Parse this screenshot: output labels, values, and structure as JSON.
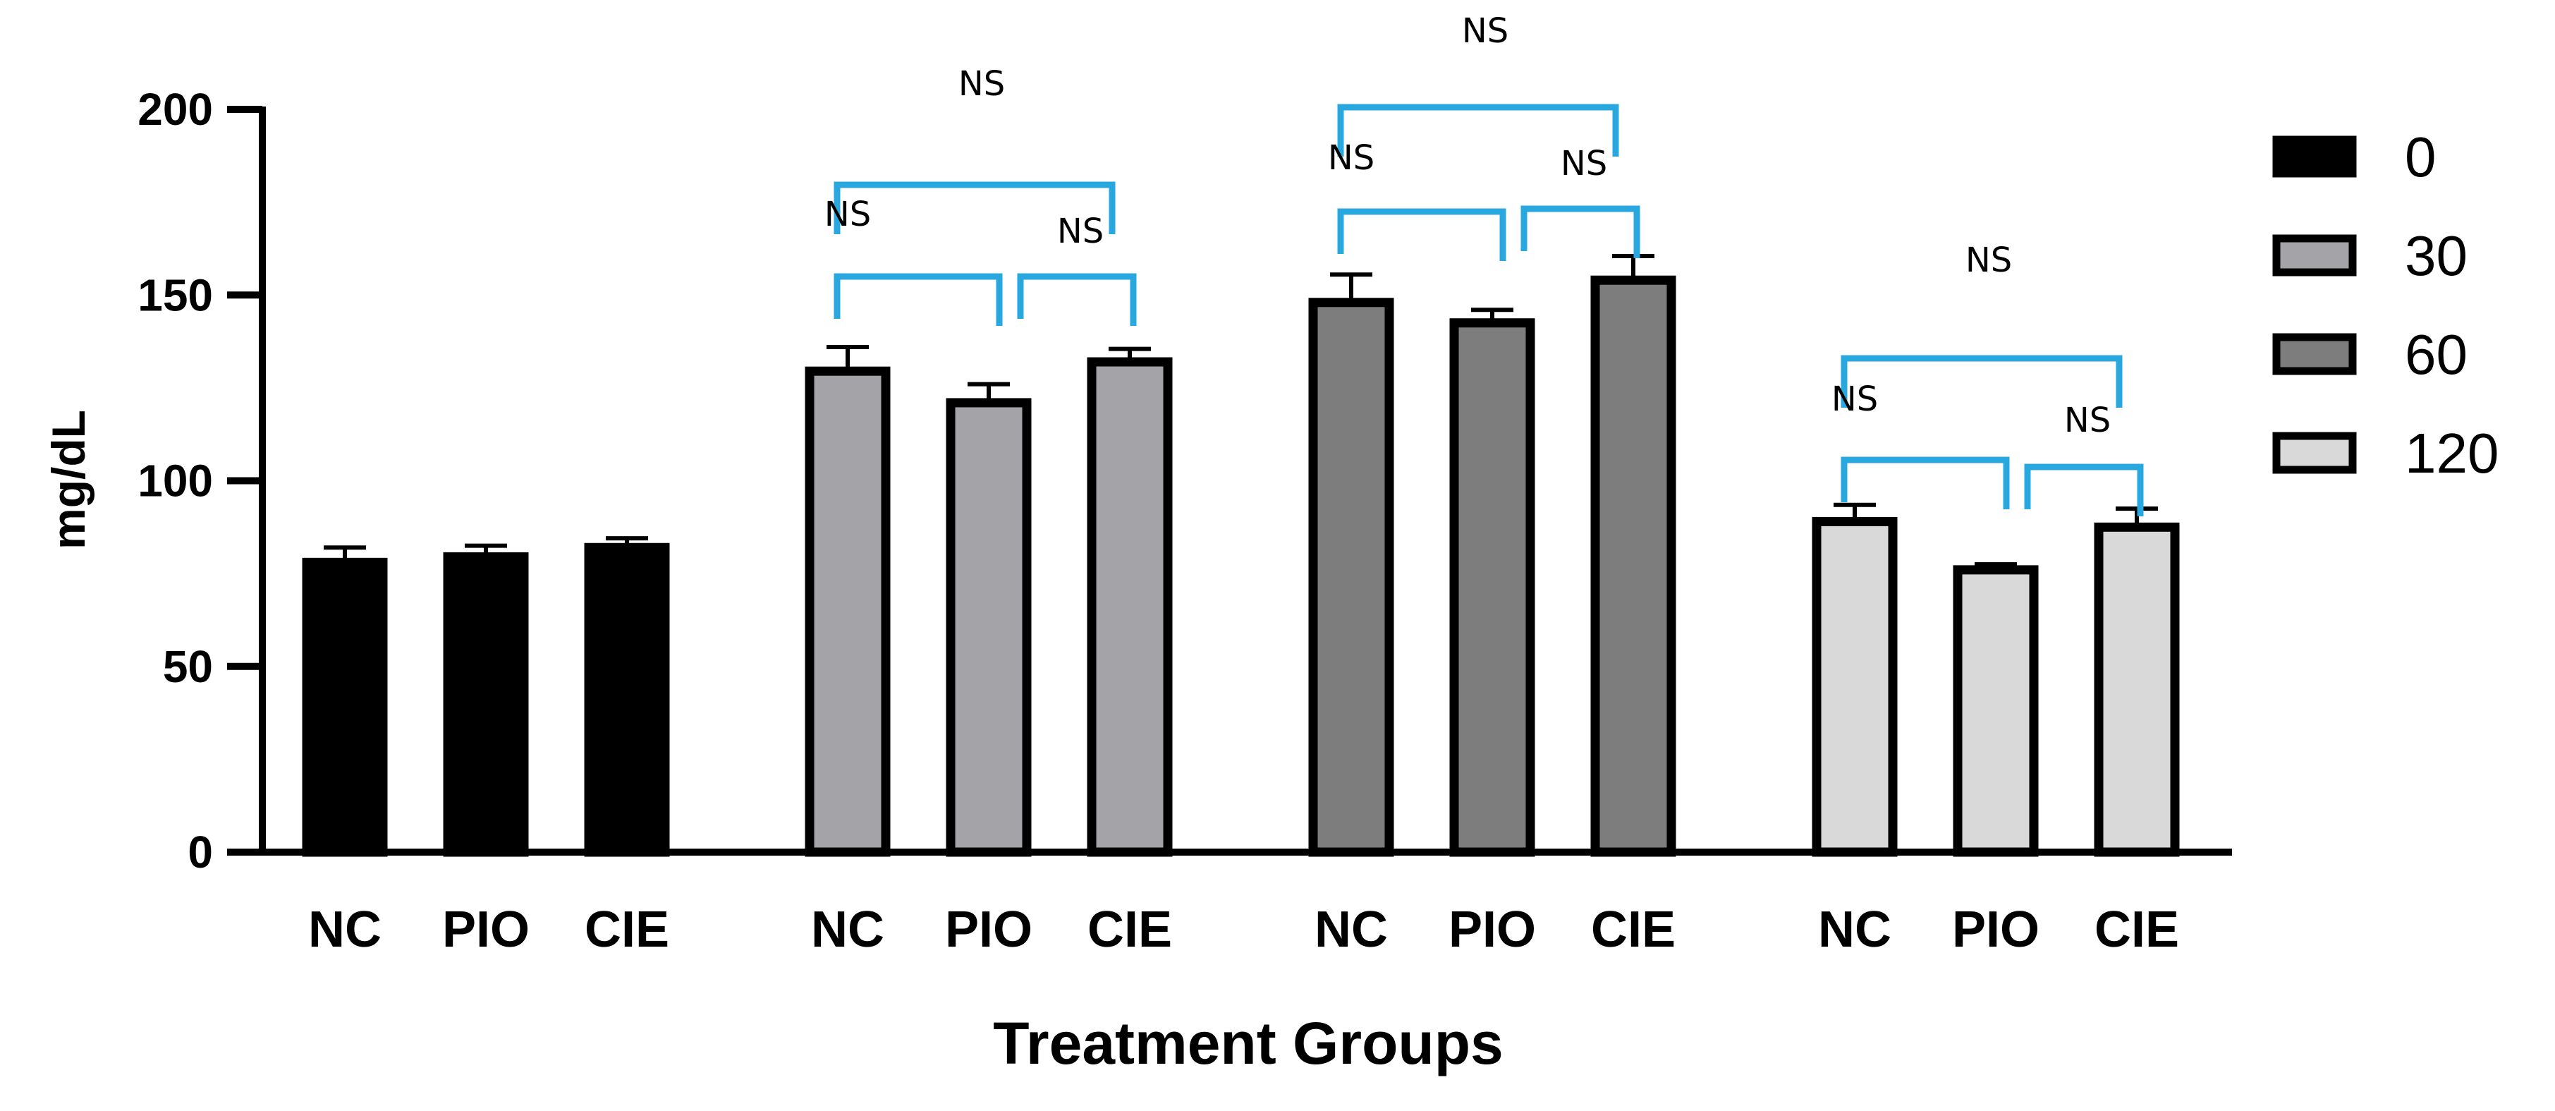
{
  "chart_data": {
    "type": "bar",
    "title": "",
    "xlabel": "Treatment Groups",
    "ylabel": "mg/dL",
    "ylim": [
      0,
      200
    ],
    "yticks": [
      0,
      50,
      100,
      150,
      200
    ],
    "categories": [
      "NC",
      "PIO",
      "CIE"
    ],
    "series": [
      {
        "name": "0",
        "color": "#000000",
        "values": [
          78,
          79.5,
          82
        ],
        "errors": [
          4,
          3,
          2.5
        ]
      },
      {
        "name": "30",
        "color": "#a3a3a8",
        "values": [
          129.5,
          121,
          132
        ],
        "errors": [
          6.5,
          5,
          3.5
        ]
      },
      {
        "name": "60",
        "color": "#7d7d7d",
        "values": [
          148,
          142.5,
          154
        ],
        "errors": [
          7.5,
          3.5,
          6.5
        ]
      },
      {
        "name": "120",
        "color": "#d9d9d9",
        "values": [
          89,
          76,
          87.5
        ],
        "errors": [
          4.5,
          1.5,
          5
        ]
      }
    ],
    "annotations": {
      "label": "NS",
      "bracket_color": "#29a8e0"
    },
    "legend": "right"
  }
}
